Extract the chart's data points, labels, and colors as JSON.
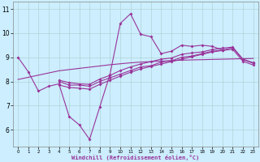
{
  "xlabel": "Windchill (Refroidissement éolien,°C)",
  "x": [
    0,
    1,
    2,
    3,
    4,
    5,
    6,
    7,
    8,
    9,
    10,
    11,
    12,
    13,
    14,
    15,
    16,
    17,
    18,
    19,
    20,
    21,
    22,
    23
  ],
  "line1": [
    9.0,
    8.4,
    7.6,
    7.8,
    7.9,
    6.55,
    6.2,
    5.6,
    6.95,
    8.3,
    10.4,
    10.8,
    9.95,
    9.85,
    9.15,
    9.25,
    9.5,
    9.45,
    9.5,
    9.45,
    9.3,
    null,
    null,
    null
  ],
  "line2": [
    null,
    null,
    null,
    null,
    8.0,
    7.85,
    7.85,
    7.8,
    8.0,
    8.15,
    8.3,
    8.45,
    8.6,
    8.65,
    8.8,
    8.85,
    9.0,
    9.05,
    9.15,
    9.25,
    9.3,
    9.4,
    8.9,
    8.75
  ],
  "line3": [
    null,
    null,
    null,
    null,
    8.05,
    7.95,
    7.9,
    7.88,
    8.1,
    8.25,
    8.45,
    8.6,
    8.72,
    8.82,
    8.92,
    8.97,
    9.12,
    9.18,
    9.22,
    9.32,
    9.38,
    9.42,
    8.92,
    8.78
  ],
  "line4": [
    null,
    null,
    null,
    null,
    7.85,
    7.75,
    7.72,
    7.68,
    7.88,
    8.05,
    8.22,
    8.38,
    8.52,
    8.62,
    8.72,
    8.82,
    8.92,
    9.02,
    9.12,
    9.22,
    9.28,
    9.33,
    8.83,
    8.68
  ],
  "line5": [
    8.08,
    8.17,
    8.26,
    8.35,
    8.44,
    8.49,
    8.54,
    8.59,
    8.64,
    8.69,
    8.73,
    8.77,
    8.8,
    8.82,
    8.84,
    8.86,
    8.88,
    8.89,
    8.9,
    8.91,
    8.92,
    8.93,
    8.94,
    8.95
  ],
  "ylim": [
    5.3,
    11.3
  ],
  "yticks": [
    6,
    7,
    8,
    9,
    10,
    11
  ],
  "xticks": [
    0,
    1,
    2,
    3,
    4,
    5,
    6,
    7,
    8,
    9,
    10,
    11,
    12,
    13,
    14,
    15,
    16,
    17,
    18,
    19,
    20,
    21,
    22,
    23
  ],
  "line_color": "#993399",
  "bg_color": "#cceeff",
  "grid_color": "#aacccc",
  "marker": "D",
  "markersize": 2.0,
  "linewidth": 0.8
}
